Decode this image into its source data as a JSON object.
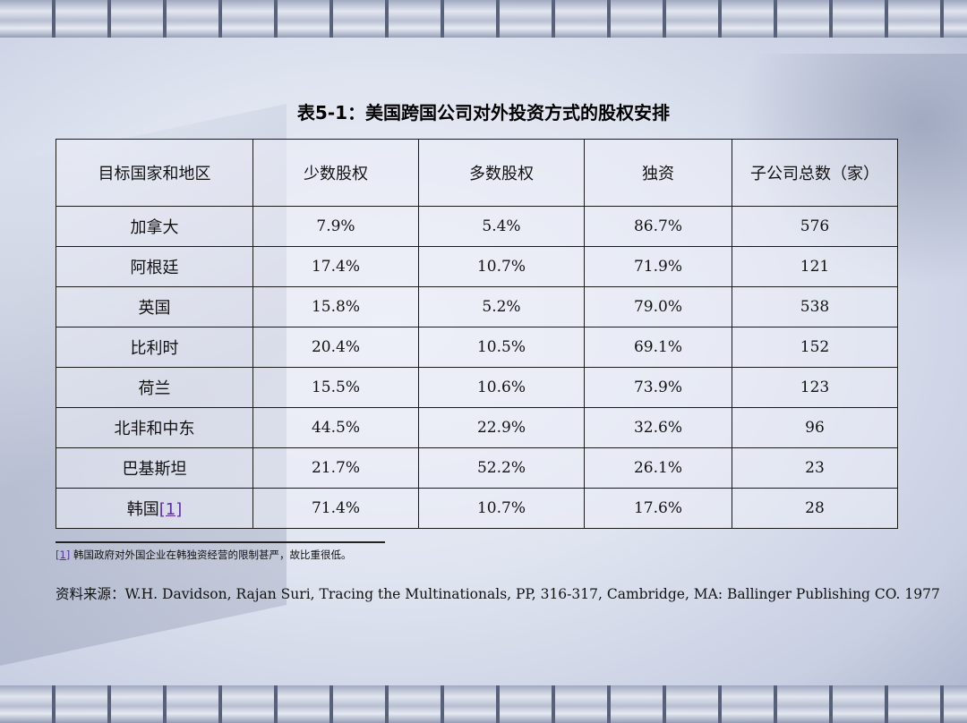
{
  "title": "表5-1：美国跨国公司对外投资方式的股权安排",
  "table": {
    "headers": [
      "目标国家和地区",
      "少数股权",
      "多数股权",
      "独资",
      "子公司总数（家）"
    ],
    "rows": [
      {
        "region": "加拿大",
        "minority": "7.9%",
        "majority": "5.4%",
        "wholly": "86.7%",
        "total": "576"
      },
      {
        "region": "阿根廷",
        "minority": "17.4%",
        "majority": "10.7%",
        "wholly": "71.9%",
        "total": "121"
      },
      {
        "region": "英国",
        "minority": "15.8%",
        "majority": "5.2%",
        "wholly": "79.0%",
        "total": "538"
      },
      {
        "region": "比利时",
        "minority": "20.4%",
        "majority": "10.5%",
        "wholly": "69.1%",
        "total": "152"
      },
      {
        "region": "荷兰",
        "minority": "15.5%",
        "majority": "10.6%",
        "wholly": "73.9%",
        "total": "123"
      },
      {
        "region": "北非和中东",
        "minority": "44.5%",
        "majority": "22.9%",
        "wholly": "32.6%",
        "total": "96"
      },
      {
        "region": "巴基斯坦",
        "minority": "21.7%",
        "majority": "52.2%",
        "wholly": "26.1%",
        "total": "23"
      },
      {
        "region": "韩国",
        "region_ref": "[1]",
        "minority": "71.4%",
        "majority": "10.7%",
        "wholly": "17.6%",
        "total": "28"
      }
    ]
  },
  "footnote": {
    "ref": "[1]",
    "text": "韩国政府对外国企业在韩独资经营的限制甚严，故比重很低。"
  },
  "source": {
    "label": "资料来源：",
    "text": "W.H. Davidson, Rajan Suri, Tracing the Multinationals, PP, 316-317, Cambridge, MA: Ballinger Publishing CO. 1977"
  },
  "colors": {
    "footnote_link": "#5a2ea6",
    "background": "#dfe4f0"
  }
}
